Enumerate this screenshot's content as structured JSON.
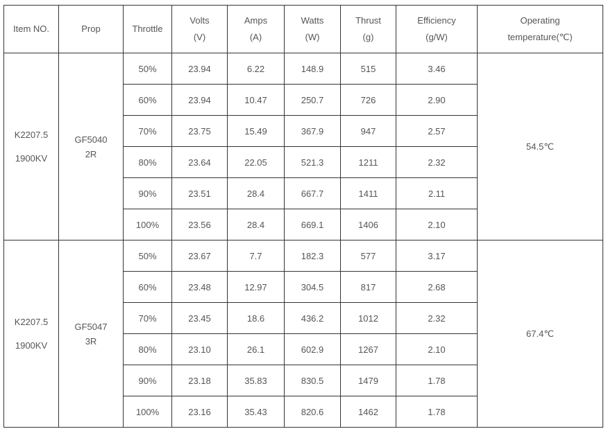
{
  "headers": [
    {
      "line1": "Item NO.",
      "line2": ""
    },
    {
      "line1": "Prop",
      "line2": ""
    },
    {
      "line1": "Throttle",
      "line2": ""
    },
    {
      "line1": "Volts",
      "line2": "(V)"
    },
    {
      "line1": "Amps",
      "line2": "(A)"
    },
    {
      "line1": "Watts",
      "line2": "(W)"
    },
    {
      "line1": "Thrust",
      "line2": "(g)"
    },
    {
      "line1": "Efficiency",
      "line2": "(g/W)"
    },
    {
      "line1": "Operating",
      "line2": "temperature(℃)"
    }
  ],
  "groups": [
    {
      "item": [
        "K2207.5",
        "1900KV"
      ],
      "prop": [
        "GF5040",
        "2R"
      ],
      "temperature": "54.5℃",
      "rows": [
        [
          "50%",
          "23.94",
          "6.22",
          "148.9",
          "515",
          "3.46"
        ],
        [
          "60%",
          "23.94",
          "10.47",
          "250.7",
          "726",
          "2.90"
        ],
        [
          "70%",
          "23.75",
          "15.49",
          "367.9",
          "947",
          "2.57"
        ],
        [
          "80%",
          "23.64",
          "22.05",
          "521.3",
          "1211",
          "2.32"
        ],
        [
          "90%",
          "23.51",
          "28.4",
          "667.7",
          "1411",
          "2.11"
        ],
        [
          "100%",
          "23.56",
          "28.4",
          "669.1",
          "1406",
          "2.10"
        ]
      ]
    },
    {
      "item": [
        "K2207.5",
        "1900KV"
      ],
      "prop": [
        "GF5047",
        "3R"
      ],
      "temperature": "67.4℃",
      "rows": [
        [
          "50%",
          "23.67",
          "7.7",
          "182.3",
          "577",
          "3.17"
        ],
        [
          "60%",
          "23.48",
          "12.97",
          "304.5",
          "817",
          "2.68"
        ],
        [
          "70%",
          "23.45",
          "18.6",
          "436.2",
          "1012",
          "2.32"
        ],
        [
          "80%",
          "23.10",
          "26.1",
          "602.9",
          "1267",
          "2.10"
        ],
        [
          "90%",
          "23.18",
          "35.83",
          "830.5",
          "1479",
          "1.78"
        ],
        [
          "100%",
          "23.16",
          "35.43",
          "820.6",
          "1462",
          "1.78"
        ]
      ]
    }
  ]
}
